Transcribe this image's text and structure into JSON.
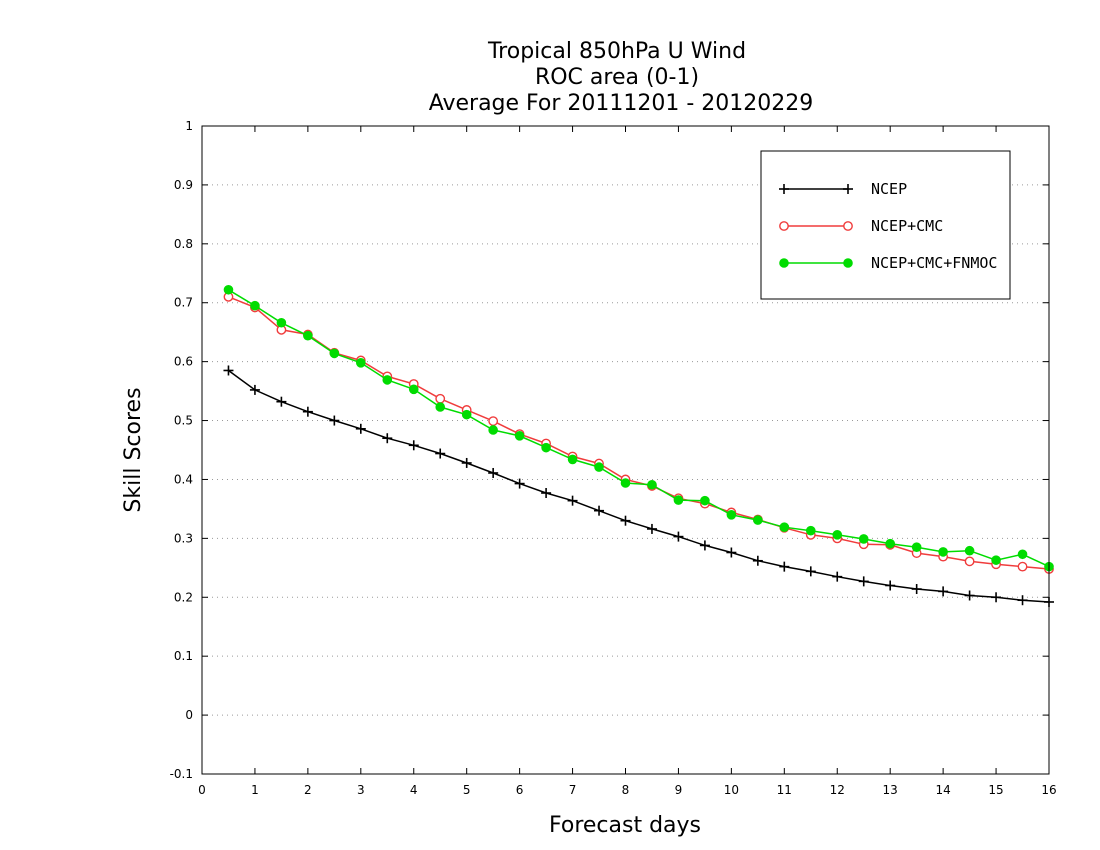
{
  "chart_data": {
    "type": "line",
    "title": [
      "Tropical 850hPa U Wind",
      "ROC area (0-1)",
      "Average For 20111201 - 20120229"
    ],
    "xlabel": "Forecast days",
    "ylabel": "Skill Scores",
    "xlim": [
      0,
      16
    ],
    "ylim": [
      -0.1,
      1
    ],
    "xticks": [
      0,
      1,
      2,
      3,
      4,
      5,
      6,
      7,
      8,
      9,
      10,
      11,
      12,
      13,
      14,
      15,
      16
    ],
    "yticks": [
      -0.1,
      0,
      0.1,
      0.2,
      0.3,
      0.4,
      0.5,
      0.6,
      0.7,
      0.8,
      0.9,
      1
    ],
    "grid": "horizontal dotted",
    "legend": "top-right",
    "x": [
      0.5,
      1,
      1.5,
      2,
      2.5,
      3,
      3.5,
      4,
      4.5,
      5,
      5.5,
      6,
      6.5,
      7,
      7.5,
      8,
      8.5,
      9,
      9.5,
      10,
      10.5,
      11,
      11.5,
      12,
      12.5,
      13,
      13.5,
      14,
      14.5,
      15,
      15.5,
      16
    ],
    "series": [
      {
        "name": "NCEP",
        "color": "#000000",
        "marker": "plus",
        "values": [
          0.585,
          0.552,
          0.532,
          0.515,
          0.5,
          0.486,
          0.47,
          0.458,
          0.444,
          0.428,
          0.411,
          0.393,
          0.377,
          0.364,
          0.347,
          0.33,
          0.316,
          0.303,
          0.288,
          0.276,
          0.262,
          0.252,
          0.244,
          0.235,
          0.227,
          0.22,
          0.214,
          0.21,
          0.203,
          0.2,
          0.195,
          0.192
        ]
      },
      {
        "name": "NCEP+CMC",
        "color": "#f03c3c",
        "marker": "open-circle",
        "values": [
          0.71,
          0.692,
          0.654,
          0.646,
          0.615,
          0.602,
          0.575,
          0.562,
          0.537,
          0.518,
          0.499,
          0.477,
          0.461,
          0.439,
          0.427,
          0.4,
          0.389,
          0.368,
          0.359,
          0.344,
          0.332,
          0.318,
          0.306,
          0.3,
          0.29,
          0.289,
          0.275,
          0.269,
          0.261,
          0.256,
          0.252,
          0.248
        ]
      },
      {
        "name": "NCEP+CMC+FNMOC",
        "color": "#00dc00",
        "marker": "filled-circle",
        "values": [
          0.722,
          0.695,
          0.666,
          0.644,
          0.614,
          0.598,
          0.569,
          0.553,
          0.523,
          0.51,
          0.484,
          0.474,
          0.454,
          0.434,
          0.421,
          0.394,
          0.391,
          0.365,
          0.364,
          0.34,
          0.331,
          0.319,
          0.313,
          0.306,
          0.299,
          0.291,
          0.285,
          0.277,
          0.279,
          0.263,
          0.273,
          0.252
        ]
      }
    ]
  }
}
